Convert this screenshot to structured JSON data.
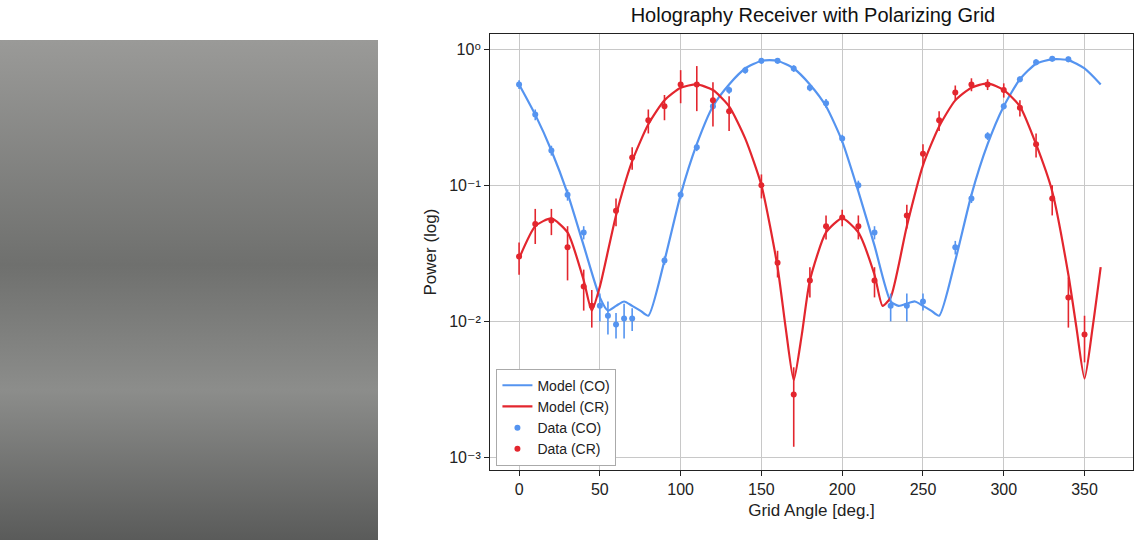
{
  "chart_data": {
    "type": "line",
    "title": "Holography Receiver with Polarizing Grid",
    "x_label": "Grid Angle [deg.]",
    "y_label": "Power (log)",
    "log": "y",
    "grid": true,
    "legend": "lower left",
    "xlim": [
      -18,
      380
    ],
    "ylim": [
      0.00081,
      1.29
    ],
    "xticks": [
      0,
      50,
      100,
      150,
      200,
      250,
      300,
      350
    ],
    "yticks": [
      {
        "value": 0.001,
        "label": "10⁻³"
      },
      {
        "value": 0.01,
        "label": "10⁻²"
      },
      {
        "value": 0.1,
        "label": "10⁻¹"
      },
      {
        "value": 1,
        "label": "10⁰"
      }
    ],
    "series": [
      {
        "name": "Model (CO)",
        "type": "line",
        "color": "#5594f0",
        "line_style": "solid",
        "x": [
          0,
          10,
          20,
          30,
          40,
          50,
          55,
          60,
          65,
          70,
          75,
          80,
          90,
          100,
          110,
          120,
          130,
          140,
          150,
          155,
          160,
          170,
          180,
          190,
          200,
          210,
          220,
          230,
          235,
          240,
          245,
          250,
          255,
          260,
          270,
          280,
          290,
          300,
          310,
          320,
          330,
          340,
          350,
          360
        ],
        "values": [
          0.55,
          0.33,
          0.18,
          0.087,
          0.036,
          0.015,
          0.012,
          0.013,
          0.014,
          0.013,
          0.012,
          0.011,
          0.028,
          0.085,
          0.2,
          0.38,
          0.55,
          0.72,
          0.82,
          0.83,
          0.82,
          0.72,
          0.55,
          0.38,
          0.21,
          0.09,
          0.036,
          0.014,
          0.013,
          0.0135,
          0.014,
          0.013,
          0.012,
          0.011,
          0.028,
          0.085,
          0.2,
          0.38,
          0.6,
          0.78,
          0.84,
          0.83,
          0.72,
          0.55
        ]
      },
      {
        "name": "Model (CR)",
        "type": "line",
        "color": "#e3262e",
        "line_style": "solid",
        "x": [
          0,
          10,
          20,
          30,
          40,
          45,
          50,
          60,
          70,
          80,
          90,
          100,
          110,
          120,
          130,
          140,
          150,
          160,
          165,
          170,
          175,
          180,
          190,
          200,
          210,
          220,
          225,
          230,
          240,
          250,
          260,
          270,
          280,
          290,
          300,
          310,
          320,
          330,
          340,
          345,
          350,
          355,
          360
        ],
        "values": [
          0.029,
          0.05,
          0.057,
          0.045,
          0.02,
          0.012,
          0.018,
          0.06,
          0.15,
          0.28,
          0.42,
          0.52,
          0.55,
          0.5,
          0.38,
          0.22,
          0.1,
          0.025,
          0.009,
          0.0037,
          0.008,
          0.02,
          0.045,
          0.057,
          0.045,
          0.022,
          0.013,
          0.015,
          0.05,
          0.14,
          0.27,
          0.42,
          0.52,
          0.56,
          0.5,
          0.38,
          0.2,
          0.09,
          0.022,
          0.009,
          0.0038,
          0.009,
          0.025
        ]
      },
      {
        "name": "Data (CO)",
        "type": "scatter",
        "color": "#5594f0",
        "marker": "circle",
        "x": [
          0,
          10,
          20,
          30,
          40,
          50,
          55,
          60,
          65,
          70,
          90,
          100,
          110,
          120,
          130,
          140,
          150,
          160,
          170,
          180,
          190,
          200,
          210,
          220,
          230,
          240,
          250,
          270,
          280,
          290,
          300,
          310,
          320,
          330,
          340
        ],
        "values": [
          0.55,
          0.33,
          0.18,
          0.085,
          0.045,
          0.013,
          0.011,
          0.0095,
          0.0105,
          0.0105,
          0.028,
          0.085,
          0.19,
          0.38,
          0.5,
          0.7,
          0.82,
          0.82,
          0.72,
          0.52,
          0.4,
          0.22,
          0.1,
          0.045,
          0.013,
          0.013,
          0.014,
          0.035,
          0.08,
          0.23,
          0.38,
          0.6,
          0.8,
          0.85,
          0.84
        ],
        "error": [
          0.04,
          0.03,
          0.015,
          0.008,
          0.005,
          0.003,
          0.003,
          0.002,
          0.003,
          0.002,
          0.002,
          0.006,
          0.012,
          0.02,
          0.03,
          0.04,
          0.04,
          0.04,
          0.04,
          0.03,
          0.03,
          0.015,
          0.008,
          0.005,
          0.003,
          0.003,
          0.002,
          0.004,
          0.006,
          0.015,
          0.02,
          0.03,
          0.04,
          0.04,
          0.04
        ]
      },
      {
        "name": "Data (CR)",
        "type": "scatter",
        "color": "#e3262e",
        "marker": "circle",
        "x": [
          0,
          10,
          20,
          30,
          40,
          45,
          60,
          70,
          80,
          90,
          100,
          110,
          120,
          130,
          150,
          160,
          170,
          180,
          190,
          200,
          210,
          220,
          240,
          250,
          260,
          270,
          280,
          290,
          300,
          310,
          320,
          330,
          340,
          350
        ],
        "values": [
          0.03,
          0.052,
          0.055,
          0.035,
          0.018,
          0.013,
          0.065,
          0.16,
          0.3,
          0.38,
          0.55,
          0.55,
          0.42,
          0.35,
          0.1,
          0.027,
          0.0029,
          0.02,
          0.05,
          0.058,
          0.05,
          0.02,
          0.06,
          0.17,
          0.3,
          0.48,
          0.55,
          0.55,
          0.5,
          0.37,
          0.2,
          0.08,
          0.015,
          0.008
        ],
        "error": [
          0.008,
          0.015,
          0.012,
          0.015,
          0.006,
          0.004,
          0.015,
          0.03,
          0.06,
          0.08,
          0.15,
          0.2,
          0.15,
          0.1,
          0.02,
          0.006,
          0.0017,
          0.005,
          0.01,
          0.008,
          0.01,
          0.005,
          0.012,
          0.03,
          0.05,
          0.06,
          0.06,
          0.05,
          0.06,
          0.05,
          0.04,
          0.02,
          0.006,
          0.003
        ]
      }
    ]
  }
}
